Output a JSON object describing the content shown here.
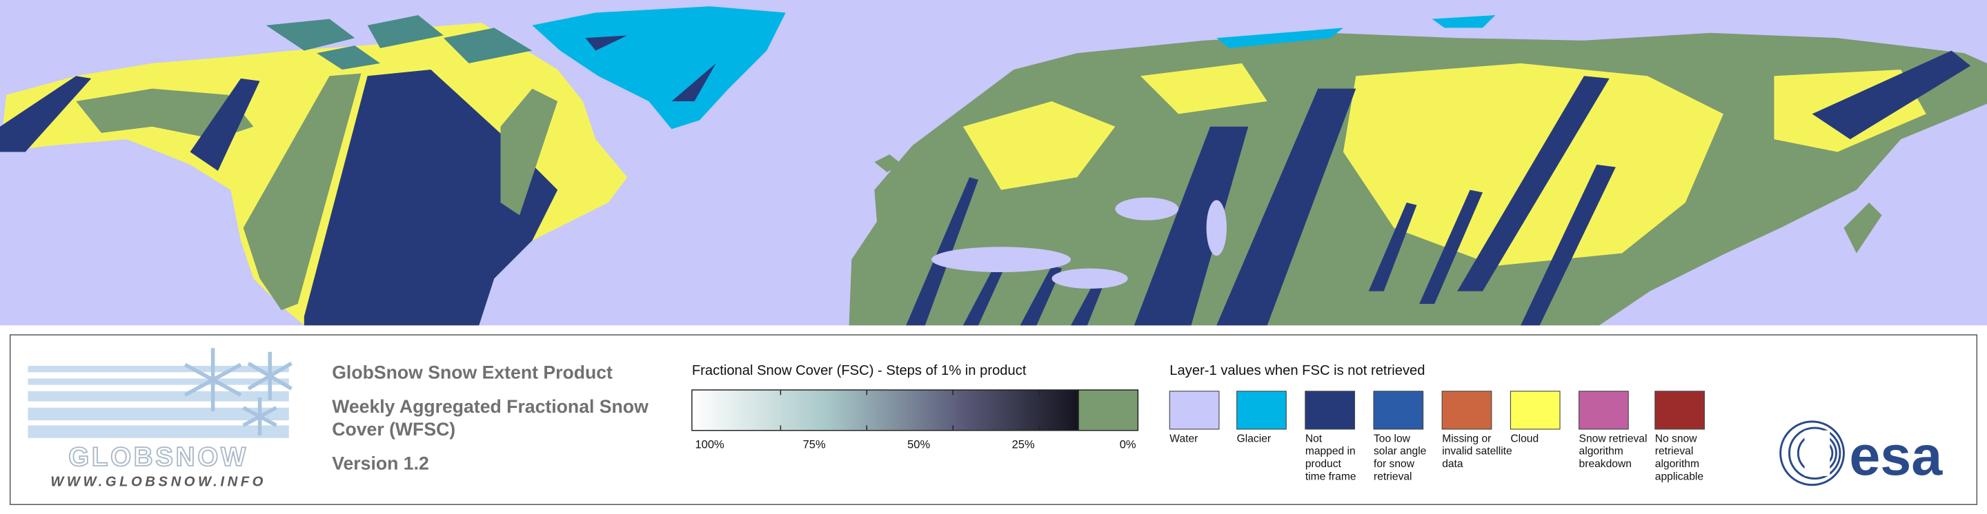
{
  "logo": {
    "name": "GLOBSNOW",
    "url": "WWW.GLOBSNOW.INFO"
  },
  "product": {
    "title": "GlobSnow Snow Extent Product",
    "subtitle": [
      "Weekly Aggregated Fractional Snow",
      "Cover (WFSC)"
    ],
    "version": "Version 1.2"
  },
  "fsc_scale": {
    "title": "Fractional Snow Cover (FSC) - Steps of 1% in product",
    "labels": [
      "100%",
      "75%",
      "50%",
      "25%",
      "0%"
    ]
  },
  "layer1": {
    "title": "Layer-1 values when FSC is not retrieved",
    "items": [
      {
        "color": "#c8c8fa",
        "label": [
          "Water"
        ]
      },
      {
        "color": "#00b4e6",
        "label": [
          "Glacier"
        ]
      },
      {
        "color": "#263a7a",
        "label": [
          "Not",
          "mapped in",
          "product",
          "time frame"
        ]
      },
      {
        "color": "#2a5ca8",
        "label": [
          "Too low",
          "solar angle",
          "for snow",
          "retrieval"
        ]
      },
      {
        "color": "#cc6640",
        "label": [
          "Missing or",
          "invalid satellite",
          "data"
        ]
      },
      {
        "color": "#ffff5a",
        "label": [
          "Cloud"
        ]
      },
      {
        "color": "#c060a0",
        "label": [
          "Snow retrieval",
          "algorithm",
          "breakdown"
        ]
      },
      {
        "color": "#9c2c2c",
        "label": [
          "No snow",
          "retrieval",
          "algorithm",
          "applicable"
        ]
      }
    ]
  },
  "agency": "esa"
}
